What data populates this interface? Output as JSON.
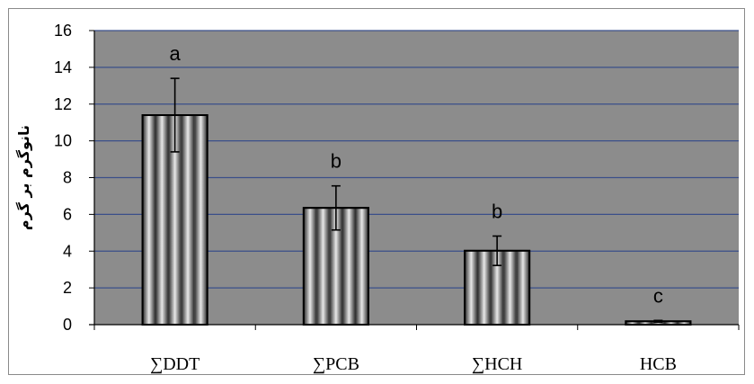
{
  "chart_data": {
    "type": "bar",
    "ylabel": "نانوگرم بر گرم",
    "xlabel": "",
    "title": "",
    "ylim": [
      0,
      16
    ],
    "yticks": [
      0,
      2,
      4,
      6,
      8,
      10,
      12,
      14,
      16
    ],
    "grid": true,
    "legend": "none",
    "categories": [
      "∑DDT",
      "∑PCB",
      "∑HCH",
      "HCB"
    ],
    "values": [
      11.4,
      6.35,
      4.02,
      0.18
    ],
    "errors": [
      2.0,
      1.2,
      0.8,
      0.05
    ],
    "significance_letters": [
      "a",
      "b",
      "b",
      "c"
    ],
    "colors": {
      "plot_background": "#8c8c8c",
      "gridline": "#3a4f8a",
      "bar_light": "#e8e8e8",
      "bar_dark": "#2a2a2a"
    }
  }
}
